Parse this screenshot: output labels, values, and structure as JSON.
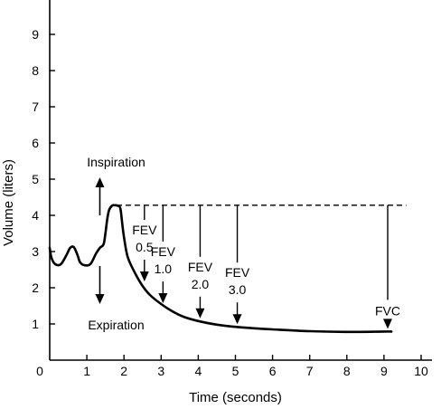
{
  "chart_data": {
    "type": "line",
    "title": "",
    "xlabel": "Time (seconds)",
    "ylabel": "Volume (liters)",
    "xlim": [
      0,
      10
    ],
    "ylim": [
      0,
      9.4
    ],
    "x_ticks": [
      1,
      2,
      3,
      4,
      5,
      6,
      7,
      8,
      9,
      10
    ],
    "y_ticks": [
      1,
      2,
      3,
      4,
      5,
      6,
      7,
      8,
      9
    ],
    "origin_label": "0",
    "grid": false,
    "series": [
      {
        "x": [
          0.0,
          0.05,
          0.15,
          0.3,
          0.45,
          0.55,
          0.65,
          0.75,
          0.82,
          0.95,
          1.1,
          1.25,
          1.35,
          1.45,
          1.5,
          1.55,
          1.6,
          1.68,
          1.75,
          1.82,
          1.9,
          1.95,
          2.0,
          2.1,
          2.3,
          2.5,
          2.7,
          3.0,
          3.3,
          3.6,
          4.0,
          4.5,
          5.0,
          5.5,
          6.0,
          7.0,
          8.0,
          9.0,
          9.2
        ],
        "y": [
          3.1,
          2.82,
          2.65,
          2.65,
          2.9,
          3.1,
          3.12,
          2.9,
          2.7,
          2.62,
          2.66,
          2.95,
          3.1,
          3.2,
          3.5,
          3.9,
          4.15,
          4.27,
          4.28,
          4.27,
          4.2,
          3.8,
          3.4,
          2.85,
          2.4,
          2.05,
          1.8,
          1.55,
          1.35,
          1.2,
          1.08,
          0.98,
          0.92,
          0.88,
          0.85,
          0.8,
          0.78,
          0.79,
          0.79
        ]
      }
    ],
    "reference_line": {
      "y": 4.28,
      "x_start": 1.8,
      "x_end": 9.6
    },
    "markers": [
      {
        "label_lines": [
          "FEV",
          "0.5"
        ],
        "x": 2.55,
        "y_start": 4.28,
        "y_end": 2.1
      },
      {
        "label_lines": [
          "FEV",
          "1.0"
        ],
        "x": 3.05,
        "y_start": 4.28,
        "y_end": 1.5
      },
      {
        "label_lines": [
          "FEV",
          "2.0"
        ],
        "x": 4.05,
        "y_start": 4.28,
        "y_end": 1.08
      },
      {
        "label_lines": [
          "FEV",
          "3.0"
        ],
        "x": 5.05,
        "y_start": 4.28,
        "y_end": 0.92
      },
      {
        "label_lines": [
          "FVC"
        ],
        "x": 9.1,
        "y_start": 4.28,
        "y_end": 0.79
      }
    ],
    "annotations": [
      {
        "text": "Inspiration",
        "direction": "up",
        "x": 1.35,
        "y_start": 4.0,
        "y_end": 5.0
      },
      {
        "text": "Expiration",
        "direction": "down",
        "x": 1.35,
        "y_start": 2.6,
        "y_end": 1.6
      }
    ]
  }
}
